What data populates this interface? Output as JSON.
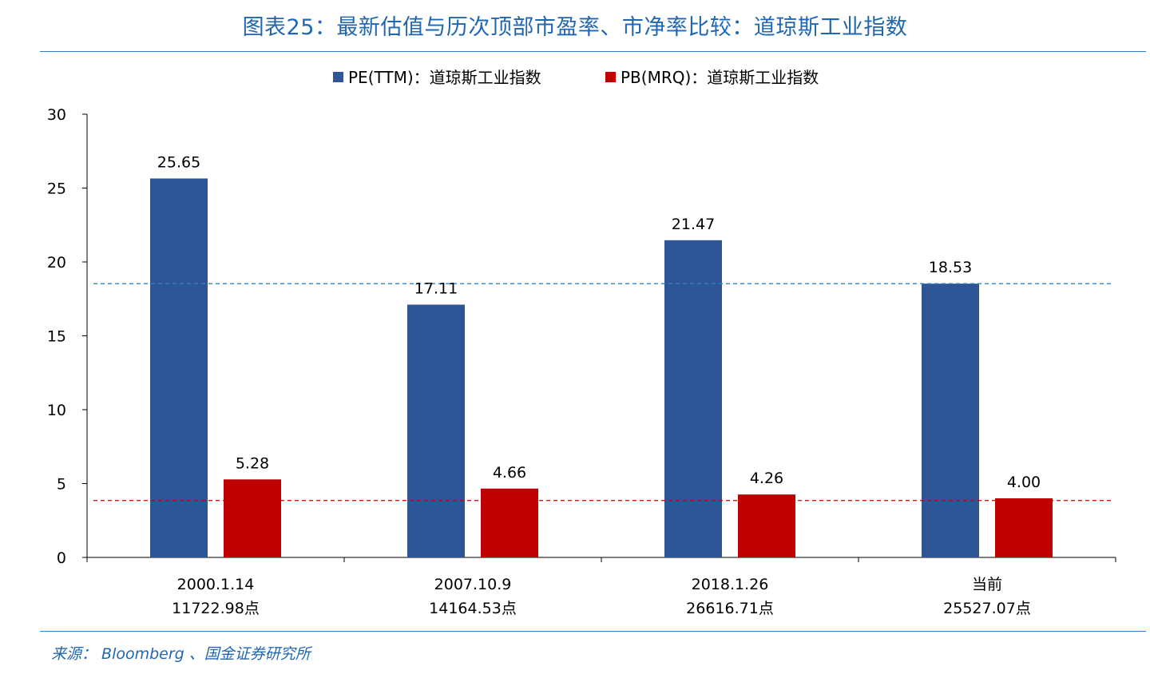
{
  "title": "图表25：最新估值与历次顶部市盈率、市净率比较：道琼斯工业指数",
  "source": "来源： Bloomberg 、国金证券研究所",
  "colors": {
    "pe": "#2e5595",
    "pb": "#c00000",
    "title": "#2167b0",
    "pe_ref_line": "#2f80c4",
    "pb_ref_line": "#c00000"
  },
  "chart_data": {
    "type": "bar",
    "categories": [
      {
        "line1": "2000.1.14",
        "line2": "11722.98点"
      },
      {
        "line1": "2007.10.9",
        "line2": "14164.53点"
      },
      {
        "line1": "2018.1.26",
        "line2": "26616.71点"
      },
      {
        "line1": "当前",
        "line2": "25527.07点"
      }
    ],
    "series": [
      {
        "name": "PE(TTM)：道琼斯工业指数",
        "values": [
          25.65,
          17.11,
          21.47,
          18.53
        ],
        "labels": [
          "25.65",
          "17.11",
          "21.47",
          "18.53"
        ]
      },
      {
        "name": "PB(MRQ)：道琼斯工业指数",
        "values": [
          5.28,
          4.66,
          4.26,
          4.0
        ],
        "labels": [
          "5.28",
          "4.66",
          "4.26",
          "4.00"
        ]
      }
    ],
    "reference_lines": [
      {
        "series": "PE(TTM)：道琼斯工业指数",
        "value": 18.53,
        "style": "dashed"
      },
      {
        "series": "PB(MRQ)：道琼斯工业指数",
        "value": 3.85,
        "style": "dashed"
      }
    ],
    "yticks": [
      "0",
      "5",
      "10",
      "15",
      "20",
      "25",
      "30"
    ],
    "ylim": [
      0,
      30
    ],
    "grid": false,
    "legend_position": "top-center"
  }
}
